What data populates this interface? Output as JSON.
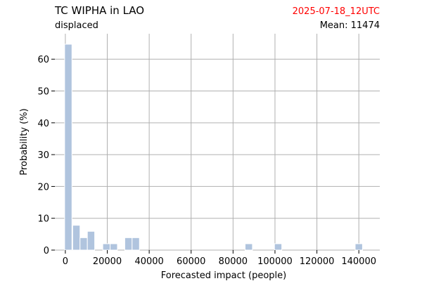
{
  "header": {
    "title": "TC WIPHA in LAO",
    "subtitle": "displaced",
    "date": "2025-07-18_12UTC",
    "mean_label": "Mean: 11474"
  },
  "colors": {
    "bar": "#b0c4de",
    "grid": "#b0b0b0",
    "date": "#ff0000",
    "text": "#000000"
  },
  "chart_data": {
    "type": "bar",
    "xlabel": "Forecasted impact (people)",
    "ylabel": "Probability (%)",
    "xlim": [
      -5000,
      150000
    ],
    "ylim": [
      0,
      68
    ],
    "xticks": [
      0,
      20000,
      40000,
      60000,
      80000,
      100000,
      120000,
      140000
    ],
    "yticks": [
      0,
      10,
      20,
      30,
      40,
      50,
      60
    ],
    "grid": true,
    "bin_width": 3500,
    "bars": [
      {
        "x": 1400,
        "value": 64.7
      },
      {
        "x": 5250,
        "value": 7.8
      },
      {
        "x": 8750,
        "value": 3.9
      },
      {
        "x": 12250,
        "value": 5.9
      },
      {
        "x": 19600,
        "value": 2.0
      },
      {
        "x": 23100,
        "value": 2.0
      },
      {
        "x": 30100,
        "value": 3.9
      },
      {
        "x": 33600,
        "value": 3.9
      },
      {
        "x": 87500,
        "value": 2.0
      },
      {
        "x": 101500,
        "value": 2.0
      },
      {
        "x": 140000,
        "value": 2.0
      }
    ]
  }
}
